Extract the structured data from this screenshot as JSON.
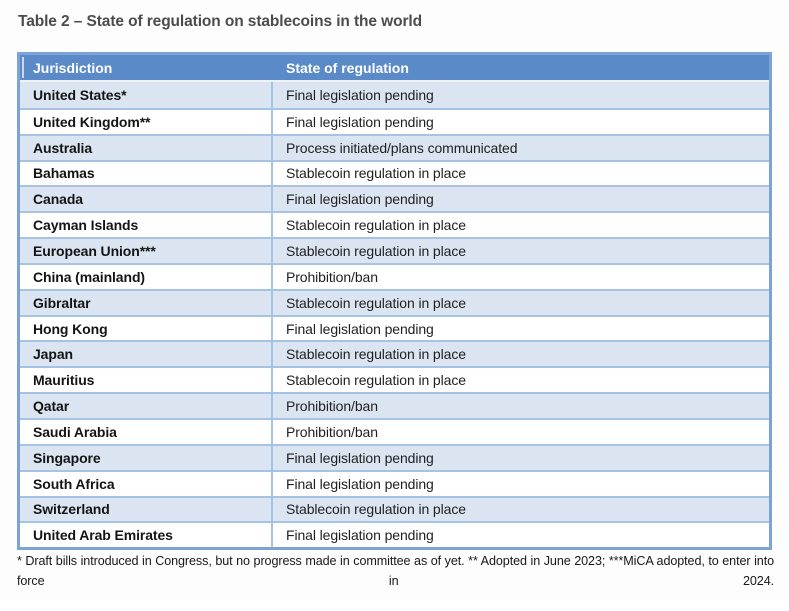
{
  "title": "Table 2 – State of regulation on stablecoins in the world",
  "table": {
    "headers": [
      "Jurisdiction",
      "State of regulation"
    ],
    "rows": [
      {
        "jurisdiction": "United States*",
        "state": "Final legislation pending"
      },
      {
        "jurisdiction": "United Kingdom**",
        "state": "Final legislation pending"
      },
      {
        "jurisdiction": "Australia",
        "state": "Process initiated/plans communicated"
      },
      {
        "jurisdiction": "Bahamas",
        "state": "Stablecoin regulation in place"
      },
      {
        "jurisdiction": "Canada",
        "state": "Final legislation pending"
      },
      {
        "jurisdiction": "Cayman Islands",
        "state": "Stablecoin regulation in place"
      },
      {
        "jurisdiction": "European Union***",
        "state": "Stablecoin regulation in place"
      },
      {
        "jurisdiction": "China (mainland)",
        "state": "Prohibition/ban"
      },
      {
        "jurisdiction": "Gibraltar",
        "state": "Stablecoin regulation in place"
      },
      {
        "jurisdiction": "Hong Kong",
        "state": "Final legislation pending"
      },
      {
        "jurisdiction": "Japan",
        "state": "Stablecoin regulation in place"
      },
      {
        "jurisdiction": "Mauritius",
        "state": "Stablecoin regulation in place"
      },
      {
        "jurisdiction": "Qatar",
        "state": "Prohibition/ban"
      },
      {
        "jurisdiction": "Saudi Arabia",
        "state": "Prohibition/ban"
      },
      {
        "jurisdiction": "Singapore",
        "state": "Final legislation pending"
      },
      {
        "jurisdiction": "South Africa",
        "state": "Final legislation pending"
      },
      {
        "jurisdiction": "Switzerland",
        "state": "Stablecoin regulation in place"
      },
      {
        "jurisdiction": "United Arab Emirates",
        "state": "Final legislation pending"
      }
    ]
  },
  "footnote": "* Draft bills introduced in Congress, but no progress made in committee as of yet. ** Adopted in June 2023; ***MiCA adopted, to enter into force in 2024.",
  "colors": {
    "header_bg": "#5a8ac8",
    "row_alt_bg": "#dbe5f1",
    "row_bg": "#ffffff",
    "inner_border": "#a6c3e3",
    "outer_border": "#7ba3d6",
    "header_text": "#ffffff",
    "title_text": "#4c4c4c"
  }
}
